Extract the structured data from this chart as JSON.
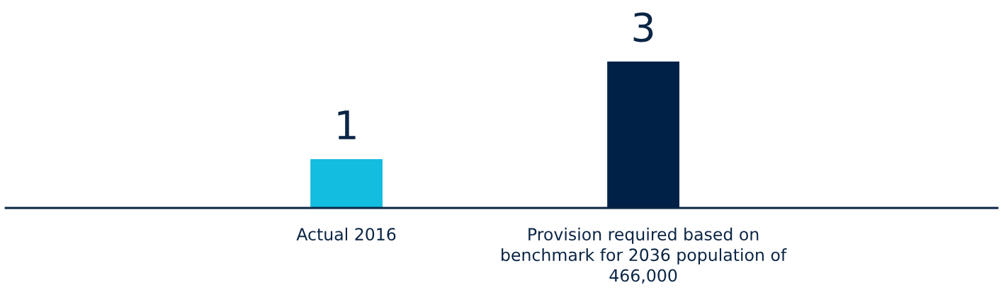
{
  "chart_data": {
    "type": "bar",
    "categories": [
      "Actual 2016",
      "Provision required based on\nbenchmark for 2036 population of\n466,000"
    ],
    "values": [
      1,
      3
    ],
    "colors": [
      "#13bde0",
      "#002147"
    ],
    "data_labels": true,
    "grid": false
  }
}
